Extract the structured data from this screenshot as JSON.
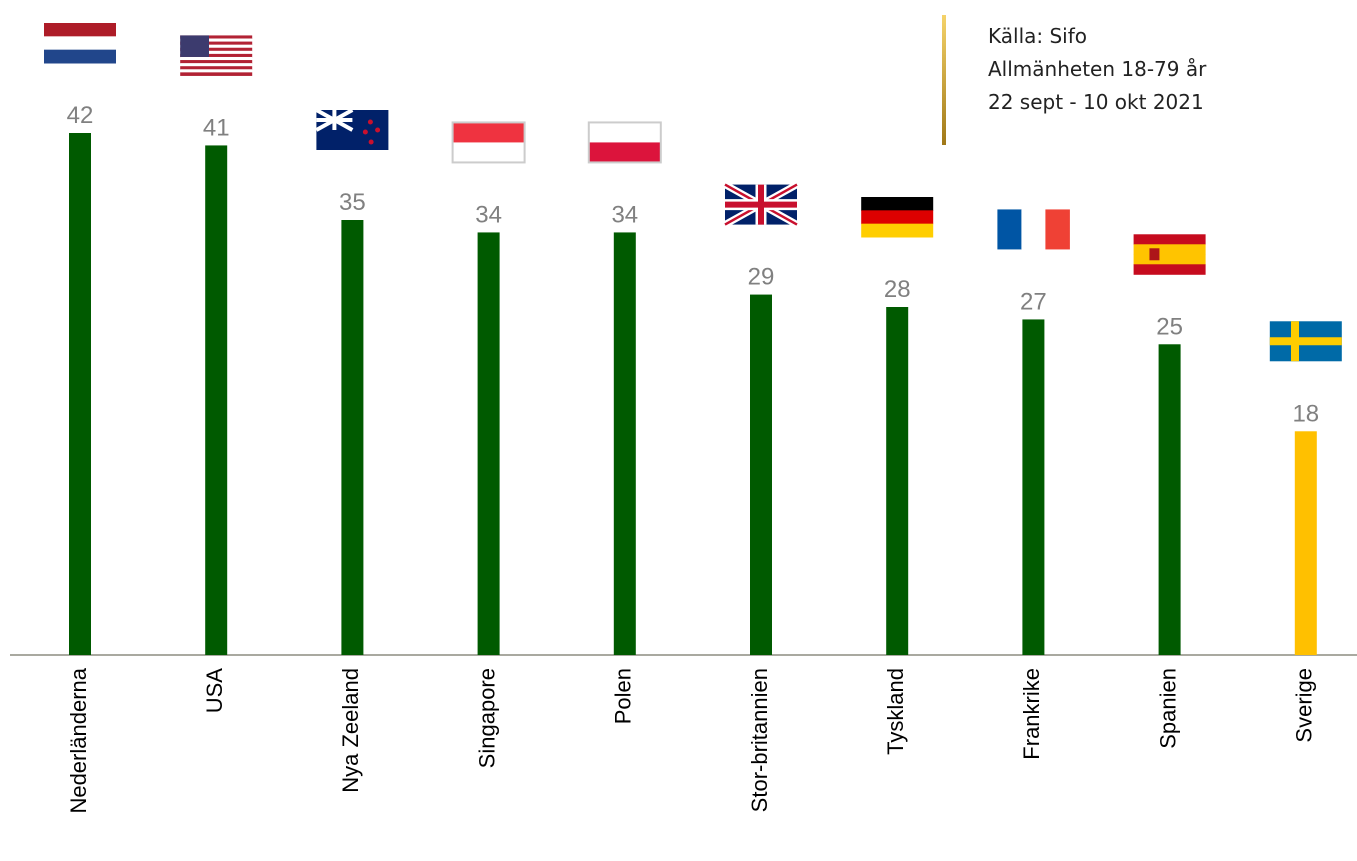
{
  "chart_data": {
    "type": "bar",
    "categories": [
      "Nederländerna",
      "USA",
      "Nya Zeeland",
      "Singapore",
      "Polen",
      "Stor-britannien",
      "Tyskland",
      "Frankrike",
      "Spanien",
      "Sverige"
    ],
    "values": [
      42,
      41,
      35,
      34,
      34,
      29,
      28,
      27,
      25,
      18
    ],
    "colors": [
      "#005a00",
      "#005a00",
      "#005a00",
      "#005a00",
      "#005a00",
      "#005a00",
      "#005a00",
      "#005a00",
      "#005a00",
      "#ffc000"
    ],
    "source": [
      "Källa: Sifo",
      "Allmänheten 18-79 år",
      "22 sept - 10 okt 2021"
    ]
  }
}
